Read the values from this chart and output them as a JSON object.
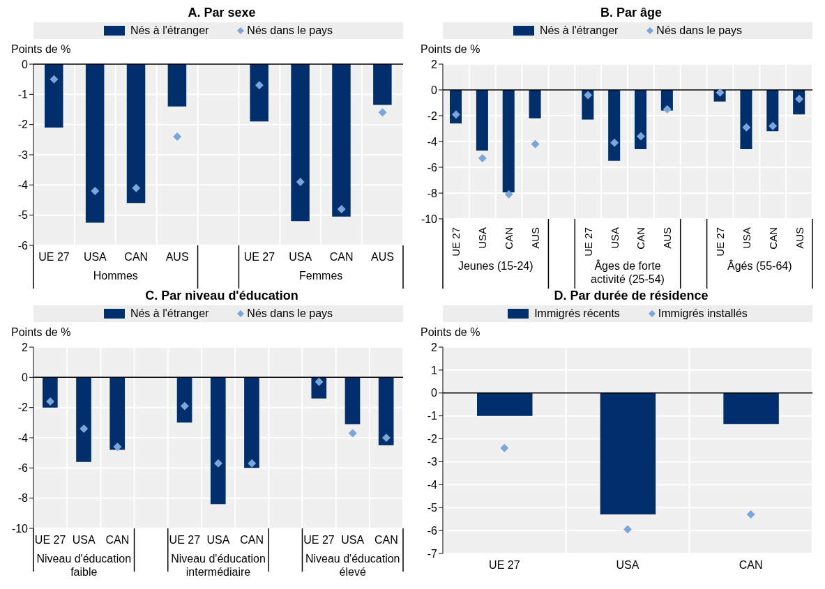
{
  "chart_data": [
    {
      "type": "bar",
      "title": "A. Par sexe",
      "ylabel": "Points de %",
      "legend": "top",
      "grid": true,
      "ylim": [
        -6,
        0
      ],
      "yticks": [
        -6,
        -5,
        -4,
        -3,
        -2,
        -1,
        0
      ],
      "categories": [
        "UE 27",
        "USA",
        "CAN",
        "AUS",
        null,
        "UE 27",
        "USA",
        "CAN",
        "AUS"
      ],
      "annotations": [
        "Hommes",
        "Femmes"
      ],
      "series": [
        {
          "name": "Nés à l'étranger",
          "color": "#002f6c",
          "values": [
            -2.1,
            -5.25,
            -4.6,
            -1.4,
            null,
            -1.9,
            -5.2,
            -5.05,
            -1.35
          ]
        },
        {
          "name": "Nés dans le pays",
          "type": "scatter",
          "marker": "diamond",
          "color": "#7ba6da",
          "values": [
            -0.5,
            -4.2,
            -4.1,
            -2.4,
            null,
            -0.7,
            -3.9,
            -4.8,
            -1.6
          ]
        }
      ]
    },
    {
      "type": "bar",
      "title": "B. Par âge",
      "ylabel": "Points de %",
      "legend": "top",
      "grid": true,
      "ylim": [
        -10,
        2
      ],
      "yticks": [
        -10,
        -8,
        -6,
        -4,
        -2,
        0,
        2
      ],
      "categories": [
        "UE 27",
        "USA",
        "CAN",
        "AUS",
        null,
        "UE 27",
        "USA",
        "CAN",
        "AUS",
        null,
        "UE 27",
        "USA",
        "CAN",
        "AUS"
      ],
      "annotations": [
        "Jeunes (15-24)",
        "Âges de forte activité (25-54)",
        "Âgés (55-64)"
      ],
      "series": [
        {
          "name": "Nés à l'étranger",
          "color": "#002f6c",
          "values": [
            -2.6,
            -4.7,
            -7.95,
            -2.2,
            null,
            -2.3,
            -5.5,
            -4.6,
            -1.6,
            null,
            -0.9,
            -4.6,
            -3.2,
            -1.9
          ]
        },
        {
          "name": "Nés dans le pays",
          "type": "scatter",
          "marker": "diamond",
          "color": "#7ba6da",
          "values": [
            -1.9,
            -5.3,
            -8.1,
            -4.2,
            null,
            -0.4,
            -4.1,
            -3.6,
            -1.5,
            null,
            -0.2,
            -2.9,
            -2.8,
            -0.7
          ]
        }
      ]
    },
    {
      "type": "bar",
      "title": "C. Par niveau d'éducation",
      "ylabel": "Points de %",
      "legend": "top",
      "grid": true,
      "ylim": [
        -10,
        2
      ],
      "yticks": [
        -10,
        -8,
        -6,
        -4,
        -2,
        0,
        2
      ],
      "categories": [
        "UE 27",
        "USA",
        "CAN",
        null,
        "UE 27",
        "USA",
        "CAN",
        null,
        "UE 27",
        "USA",
        "CAN"
      ],
      "annotations": [
        "Niveau d'éducation faible",
        "Niveau d'éducation intermédiaire",
        "Niveau d'éducation élevé"
      ],
      "series": [
        {
          "name": "Nés à l'étranger",
          "color": "#002f6c",
          "values": [
            -2.0,
            -5.6,
            -4.8,
            null,
            -3.0,
            -8.4,
            -6.0,
            null,
            -1.4,
            -3.1,
            -4.5
          ]
        },
        {
          "name": "Nés dans le pays",
          "type": "scatter",
          "marker": "diamond",
          "color": "#7ba6da",
          "values": [
            -1.6,
            -3.4,
            -4.6,
            null,
            -1.9,
            -5.7,
            -5.7,
            null,
            -0.3,
            -3.7,
            -4.0
          ]
        }
      ]
    },
    {
      "type": "bar",
      "title": "D. Par durée de résidence",
      "ylabel": "Points de %",
      "legend": "top",
      "grid": true,
      "ylim": [
        -7,
        2
      ],
      "yticks": [
        -7,
        -6,
        -5,
        -4,
        -3,
        -2,
        -1,
        0,
        1,
        2
      ],
      "categories": [
        "UE 27",
        "USA",
        "CAN"
      ],
      "series": [
        {
          "name": "Immigrés récents",
          "color": "#002f6c",
          "values": [
            -1.0,
            -5.3,
            -1.35
          ]
        },
        {
          "name": "Immigrés installés",
          "type": "scatter",
          "marker": "diamond",
          "color": "#7ba6da",
          "values": [
            -2.4,
            -5.95,
            -5.3
          ]
        }
      ]
    }
  ]
}
